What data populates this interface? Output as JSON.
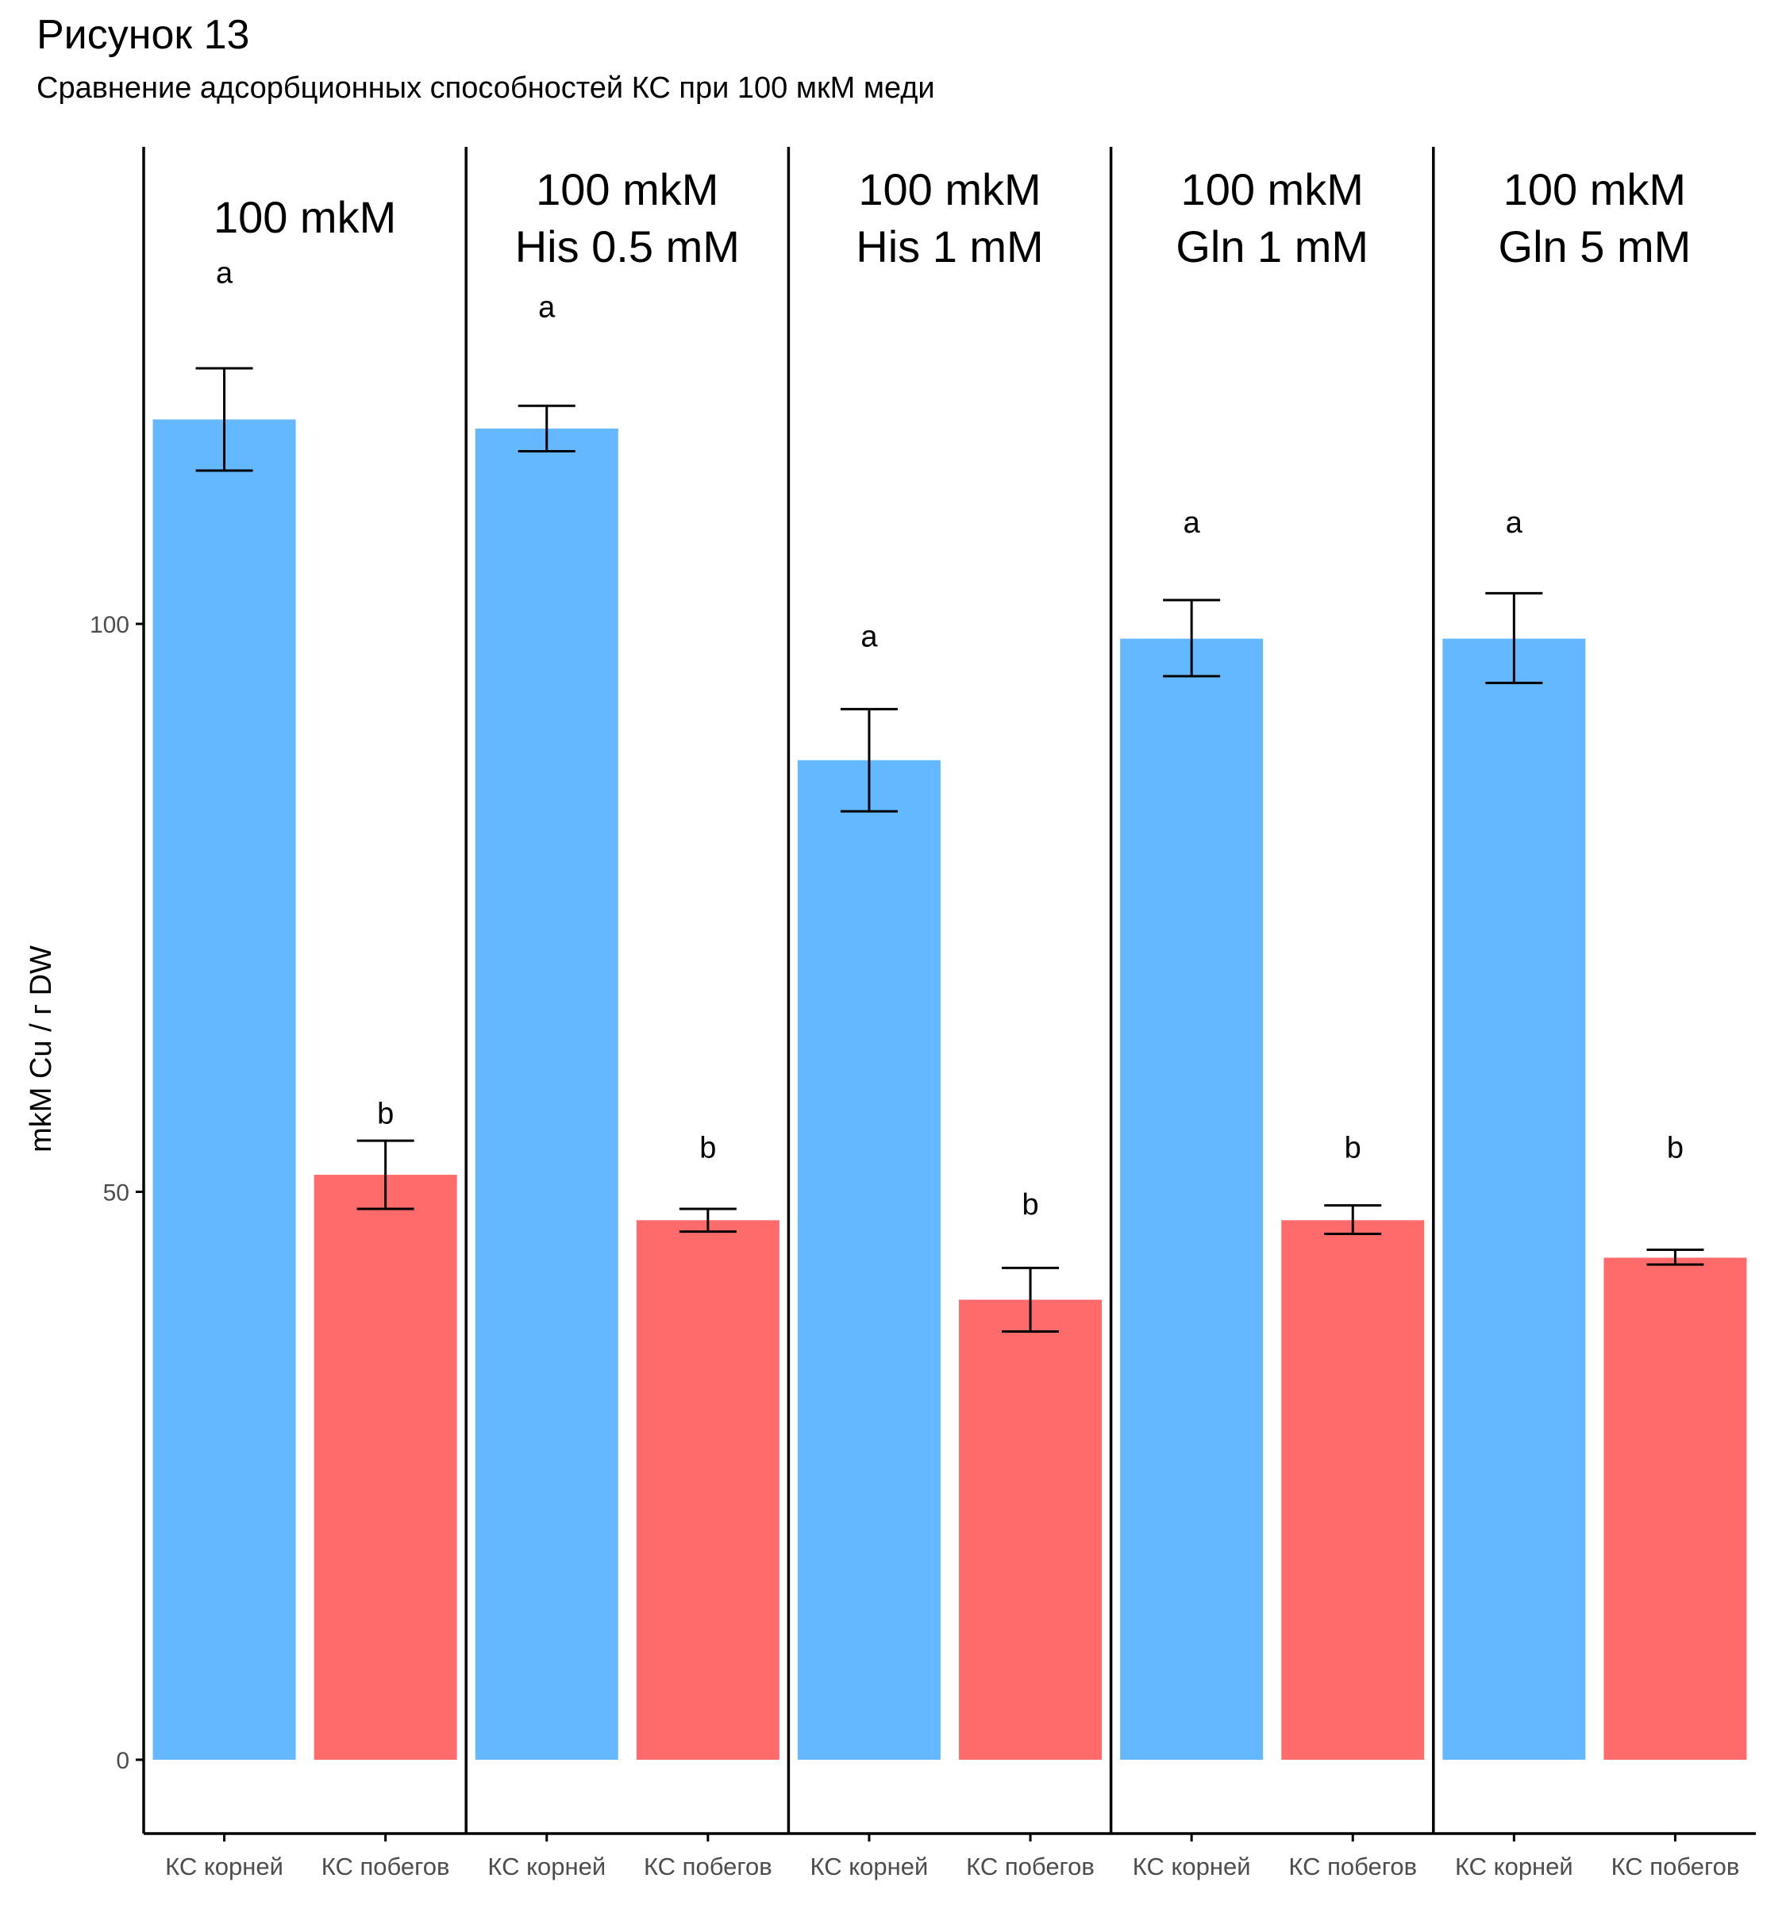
{
  "figure": {
    "title": "Рисунок 13",
    "subtitle": "Сравнение адсорбционных способностей КС при 100 мкМ меди"
  },
  "colors": {
    "roots": "#64B8FF",
    "shoots": "#FF6B6B",
    "axis": "#000000",
    "tick_text": "#4D4D4D"
  },
  "chart_data": {
    "type": "bar",
    "ylabel": "mkM Cu / г DW",
    "xlabel": "",
    "ylim": [
      -6.5,
      142
    ],
    "yticks": [
      0,
      50,
      100
    ],
    "grid": false,
    "legend": "none",
    "categories": [
      "КС корней",
      "КС побегов"
    ],
    "panels": [
      {
        "label_lines": [
          "100 mkM"
        ],
        "bars": [
          {
            "category": "КС корней",
            "value": 118,
            "err_low": 113.5,
            "err_high": 122.5,
            "letter": "a",
            "letter_y": 131
          },
          {
            "category": "КС побегов",
            "value": 51.5,
            "err_low": 48.5,
            "err_high": 54.5,
            "letter": "b",
            "letter_y": 57
          }
        ]
      },
      {
        "label_lines": [
          "100 mkM",
          "His 0.5 mM"
        ],
        "bars": [
          {
            "category": "КС корней",
            "value": 117.2,
            "err_low": 115.2,
            "err_high": 119.2,
            "letter": "a",
            "letter_y": 128
          },
          {
            "category": "КС побегов",
            "value": 47.5,
            "err_low": 46.5,
            "err_high": 48.5,
            "letter": "b",
            "letter_y": 54
          }
        ]
      },
      {
        "label_lines": [
          "100 mkM",
          "His 1 mM"
        ],
        "bars": [
          {
            "category": "КС корней",
            "value": 88,
            "err_low": 83.5,
            "err_high": 92.5,
            "letter": "a",
            "letter_y": 99
          },
          {
            "category": "КС побегов",
            "value": 40.5,
            "err_low": 37.7,
            "err_high": 43.3,
            "letter": "b",
            "letter_y": 49
          }
        ]
      },
      {
        "label_lines": [
          "100 mkM",
          "Gln 1 mM"
        ],
        "bars": [
          {
            "category": "КС корней",
            "value": 98.7,
            "err_low": 95.4,
            "err_high": 102.1,
            "letter": "a",
            "letter_y": 109
          },
          {
            "category": "КС побегов",
            "value": 47.5,
            "err_low": 46.3,
            "err_high": 48.8,
            "letter": "b",
            "letter_y": 54
          }
        ]
      },
      {
        "label_lines": [
          "100 mkM",
          "Gln 5 mM"
        ],
        "bars": [
          {
            "category": "КС корней",
            "value": 98.7,
            "err_low": 94.8,
            "err_high": 102.7,
            "letter": "a",
            "letter_y": 109
          },
          {
            "category": "КС побегов",
            "value": 44.2,
            "err_low": 43.6,
            "err_high": 44.9,
            "letter": "b",
            "letter_y": 54
          }
        ]
      }
    ]
  }
}
